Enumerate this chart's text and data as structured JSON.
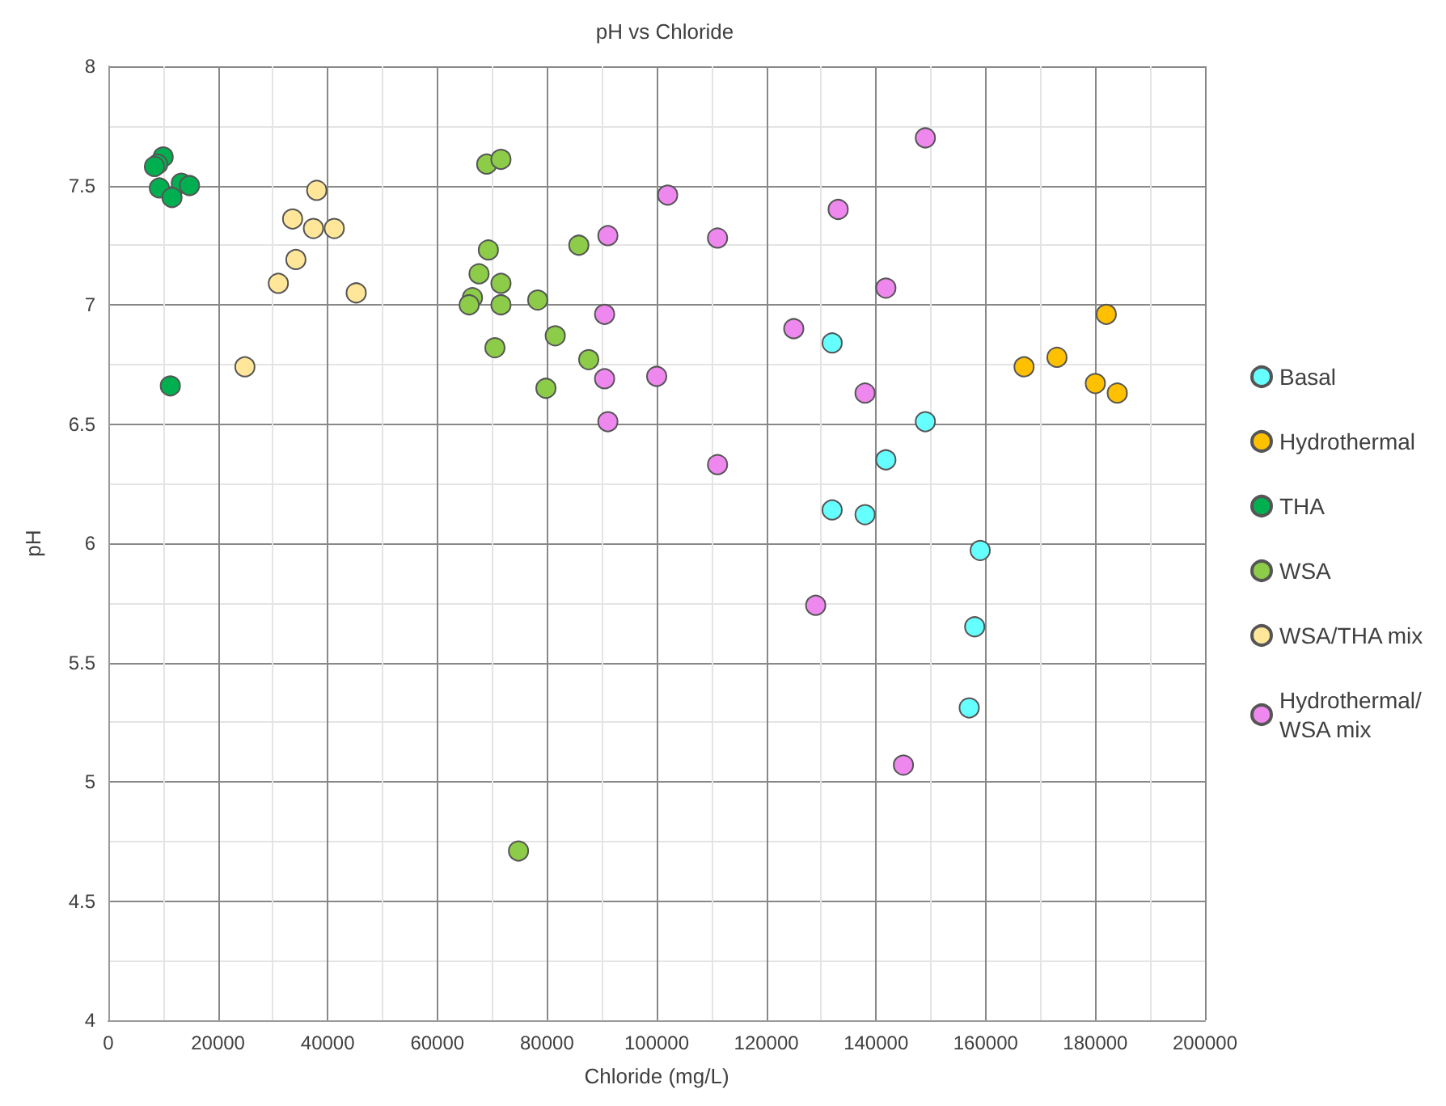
{
  "chart_data": {
    "type": "scatter",
    "title": "pH vs Chloride",
    "xlabel": "Chloride (mg/L)",
    "ylabel": "pH",
    "xlim": [
      0,
      200000
    ],
    "xticks": [
      0,
      20000,
      40000,
      60000,
      80000,
      100000,
      120000,
      140000,
      160000,
      180000,
      200000
    ],
    "ylim": [
      4,
      8
    ],
    "yticks": [
      4,
      4.5,
      5,
      5.5,
      6,
      6.5,
      7,
      7.5,
      8
    ],
    "grid": true,
    "legend": "right",
    "marker": "circle",
    "series": [
      {
        "name": "Basal",
        "color": "#66ffff",
        "x": [
          132000,
          149000,
          141800,
          132000,
          138000,
          159000,
          158000,
          157000
        ],
        "values": [
          6.84,
          6.51,
          6.35,
          6.14,
          6.12,
          5.97,
          5.65,
          5.31
        ]
      },
      {
        "name": "Hydrothermal",
        "color": "#ffc000",
        "x": [
          167000,
          173000,
          182000,
          180000,
          184000
        ],
        "values": [
          6.74,
          6.78,
          6.96,
          6.67,
          6.63
        ]
      },
      {
        "name": "THA",
        "color": "#00b050",
        "x": [
          10000,
          9000,
          8400,
          9300,
          13300,
          14800,
          11600,
          11300
        ],
        "values": [
          7.62,
          7.59,
          7.58,
          7.49,
          7.51,
          7.5,
          7.45,
          6.66
        ]
      },
      {
        "name": "WSA",
        "color": "#8ccc48",
        "x": [
          69000,
          71600,
          69300,
          67600,
          71600,
          66400,
          65800,
          71600,
          78300,
          70500,
          81500,
          87600,
          79800,
          85800,
          74800
        ],
        "values": [
          7.59,
          7.61,
          7.23,
          7.13,
          7.09,
          7.03,
          7,
          7,
          7.02,
          6.82,
          6.87,
          6.77,
          6.65,
          7.25,
          4.71
        ]
      },
      {
        "name": "WSA/THA mix",
        "color": "#ffe699",
        "x": [
          38000,
          33600,
          37400,
          41200,
          34200,
          31000,
          45200,
          24900
        ],
        "values": [
          7.48,
          7.36,
          7.32,
          7.32,
          7.19,
          7.09,
          7.05,
          6.74
        ]
      },
      {
        "name": "Hydrothermal/WSA mix",
        "color": "#ee88ee",
        "x": [
          102000,
          91100,
          111100,
          90500,
          90500,
          100000,
          91100,
          111100,
          149000,
          133100,
          141800,
          125000,
          138000,
          129000,
          145000
        ],
        "values": [
          7.46,
          7.29,
          7.28,
          6.96,
          6.69,
          6.7,
          6.51,
          6.33,
          7.7,
          7.4,
          7.07,
          6.9,
          6.63,
          5.74,
          5.07
        ]
      }
    ]
  }
}
